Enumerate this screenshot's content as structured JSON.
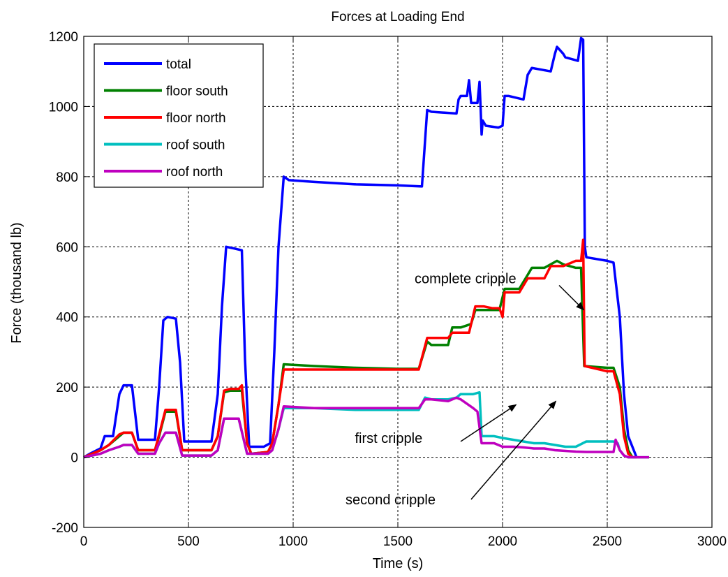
{
  "chart_data": {
    "type": "line",
    "title": "Forces at Loading End",
    "xlabel": "Time (s)",
    "ylabel": "Force (thousand lb)",
    "xlim": [
      0,
      3000
    ],
    "ylim": [
      -200,
      1200
    ],
    "x_ticks": [
      0,
      500,
      1000,
      1500,
      2000,
      2500,
      3000
    ],
    "y_ticks": [
      -200,
      0,
      200,
      400,
      600,
      800,
      1000,
      1200
    ],
    "grid": true,
    "legend_position": "top-left",
    "series": [
      {
        "name": "total",
        "color": "#0000ff",
        "points": [
          [
            0,
            0
          ],
          [
            30,
            10
          ],
          [
            80,
            25
          ],
          [
            100,
            60
          ],
          [
            140,
            60
          ],
          [
            170,
            180
          ],
          [
            190,
            205
          ],
          [
            230,
            205
          ],
          [
            260,
            50
          ],
          [
            340,
            50
          ],
          [
            360,
            200
          ],
          [
            380,
            390
          ],
          [
            400,
            400
          ],
          [
            440,
            395
          ],
          [
            460,
            270
          ],
          [
            480,
            45
          ],
          [
            570,
            45
          ],
          [
            610,
            45
          ],
          [
            640,
            180
          ],
          [
            660,
            430
          ],
          [
            680,
            600
          ],
          [
            720,
            595
          ],
          [
            755,
            590
          ],
          [
            770,
            280
          ],
          [
            790,
            30
          ],
          [
            860,
            30
          ],
          [
            890,
            40
          ],
          [
            910,
            300
          ],
          [
            930,
            600
          ],
          [
            955,
            800
          ],
          [
            980,
            790
          ],
          [
            1100,
            785
          ],
          [
            1300,
            778
          ],
          [
            1500,
            775
          ],
          [
            1615,
            772
          ],
          [
            1640,
            990
          ],
          [
            1660,
            985
          ],
          [
            1780,
            980
          ],
          [
            1790,
            1020
          ],
          [
            1800,
            1030
          ],
          [
            1830,
            1030
          ],
          [
            1840,
            1075
          ],
          [
            1850,
            1010
          ],
          [
            1880,
            1010
          ],
          [
            1890,
            1070
          ],
          [
            1895,
            1000
          ],
          [
            1900,
            920
          ],
          [
            1905,
            960
          ],
          [
            1920,
            945
          ],
          [
            1980,
            940
          ],
          [
            2000,
            945
          ],
          [
            2010,
            1030
          ],
          [
            2030,
            1030
          ],
          [
            2100,
            1020
          ],
          [
            2120,
            1090
          ],
          [
            2140,
            1110
          ],
          [
            2230,
            1100
          ],
          [
            2250,
            1150
          ],
          [
            2260,
            1170
          ],
          [
            2290,
            1150
          ],
          [
            2300,
            1140
          ],
          [
            2360,
            1130
          ],
          [
            2375,
            1195
          ],
          [
            2385,
            1190
          ],
          [
            2393,
            600
          ],
          [
            2400,
            570
          ],
          [
            2500,
            560
          ],
          [
            2530,
            555
          ],
          [
            2560,
            400
          ],
          [
            2580,
            180
          ],
          [
            2600,
            60
          ],
          [
            2620,
            30
          ],
          [
            2640,
            0
          ]
        ]
      },
      {
        "name": "floor south",
        "color": "#008000",
        "points": [
          [
            0,
            0
          ],
          [
            80,
            20
          ],
          [
            120,
            35
          ],
          [
            170,
            60
          ],
          [
            190,
            70
          ],
          [
            230,
            70
          ],
          [
            260,
            20
          ],
          [
            340,
            20
          ],
          [
            360,
            60
          ],
          [
            390,
            130
          ],
          [
            440,
            130
          ],
          [
            470,
            20
          ],
          [
            570,
            20
          ],
          [
            610,
            20
          ],
          [
            640,
            60
          ],
          [
            670,
            185
          ],
          [
            700,
            190
          ],
          [
            755,
            190
          ],
          [
            780,
            40
          ],
          [
            800,
            10
          ],
          [
            880,
            15
          ],
          [
            900,
            40
          ],
          [
            930,
            150
          ],
          [
            955,
            265
          ],
          [
            1100,
            260
          ],
          [
            1300,
            255
          ],
          [
            1500,
            252
          ],
          [
            1600,
            252
          ],
          [
            1640,
            330
          ],
          [
            1660,
            320
          ],
          [
            1740,
            320
          ],
          [
            1760,
            370
          ],
          [
            1800,
            370
          ],
          [
            1850,
            380
          ],
          [
            1870,
            420
          ],
          [
            1910,
            420
          ],
          [
            1950,
            420
          ],
          [
            1985,
            420
          ],
          [
            2010,
            480
          ],
          [
            2080,
            480
          ],
          [
            2120,
            520
          ],
          [
            2140,
            540
          ],
          [
            2200,
            540
          ],
          [
            2230,
            550
          ],
          [
            2260,
            560
          ],
          [
            2290,
            550
          ],
          [
            2350,
            540
          ],
          [
            2375,
            540
          ],
          [
            2390,
            260
          ],
          [
            2500,
            255
          ],
          [
            2530,
            255
          ],
          [
            2560,
            200
          ],
          [
            2580,
            80
          ],
          [
            2600,
            20
          ],
          [
            2620,
            0
          ],
          [
            2640,
            0
          ]
        ]
      },
      {
        "name": "floor north",
        "color": "#ff0000",
        "points": [
          [
            0,
            0
          ],
          [
            80,
            20
          ],
          [
            120,
            35
          ],
          [
            170,
            65
          ],
          [
            190,
            70
          ],
          [
            230,
            70
          ],
          [
            260,
            20
          ],
          [
            340,
            20
          ],
          [
            360,
            65
          ],
          [
            390,
            135
          ],
          [
            440,
            135
          ],
          [
            470,
            20
          ],
          [
            570,
            20
          ],
          [
            610,
            20
          ],
          [
            640,
            60
          ],
          [
            670,
            190
          ],
          [
            700,
            195
          ],
          [
            740,
            195
          ],
          [
            755,
            205
          ],
          [
            780,
            40
          ],
          [
            800,
            10
          ],
          [
            880,
            15
          ],
          [
            900,
            40
          ],
          [
            930,
            150
          ],
          [
            955,
            250
          ],
          [
            1100,
            250
          ],
          [
            1300,
            250
          ],
          [
            1500,
            250
          ],
          [
            1600,
            250
          ],
          [
            1640,
            340
          ],
          [
            1660,
            340
          ],
          [
            1740,
            340
          ],
          [
            1760,
            355
          ],
          [
            1800,
            355
          ],
          [
            1820,
            355
          ],
          [
            1840,
            355
          ],
          [
            1870,
            430
          ],
          [
            1910,
            430
          ],
          [
            1950,
            425
          ],
          [
            1985,
            425
          ],
          [
            2000,
            400
          ],
          [
            2010,
            470
          ],
          [
            2080,
            470
          ],
          [
            2120,
            510
          ],
          [
            2140,
            510
          ],
          [
            2200,
            510
          ],
          [
            2230,
            545
          ],
          [
            2260,
            545
          ],
          [
            2290,
            545
          ],
          [
            2350,
            560
          ],
          [
            2375,
            560
          ],
          [
            2385,
            620
          ],
          [
            2392,
            260
          ],
          [
            2500,
            245
          ],
          [
            2530,
            245
          ],
          [
            2560,
            180
          ],
          [
            2580,
            60
          ],
          [
            2600,
            10
          ],
          [
            2620,
            0
          ],
          [
            2640,
            0
          ]
        ]
      },
      {
        "name": "roof south",
        "color": "#00bfbf",
        "points": [
          [
            0,
            0
          ],
          [
            80,
            10
          ],
          [
            120,
            20
          ],
          [
            170,
            30
          ],
          [
            190,
            35
          ],
          [
            230,
            35
          ],
          [
            260,
            10
          ],
          [
            340,
            10
          ],
          [
            360,
            40
          ],
          [
            390,
            70
          ],
          [
            440,
            70
          ],
          [
            470,
            5
          ],
          [
            570,
            5
          ],
          [
            610,
            5
          ],
          [
            640,
            20
          ],
          [
            670,
            110
          ],
          [
            700,
            110
          ],
          [
            740,
            110
          ],
          [
            760,
            60
          ],
          [
            780,
            10
          ],
          [
            880,
            10
          ],
          [
            900,
            20
          ],
          [
            930,
            80
          ],
          [
            955,
            140
          ],
          [
            1100,
            140
          ],
          [
            1300,
            135
          ],
          [
            1500,
            135
          ],
          [
            1600,
            135
          ],
          [
            1630,
            170
          ],
          [
            1660,
            165
          ],
          [
            1740,
            165
          ],
          [
            1780,
            170
          ],
          [
            1800,
            180
          ],
          [
            1860,
            180
          ],
          [
            1890,
            185
          ],
          [
            1900,
            60
          ],
          [
            1960,
            60
          ],
          [
            2000,
            55
          ],
          [
            2050,
            50
          ],
          [
            2100,
            45
          ],
          [
            2150,
            40
          ],
          [
            2200,
            40
          ],
          [
            2250,
            35
          ],
          [
            2300,
            30
          ],
          [
            2350,
            30
          ],
          [
            2400,
            45
          ],
          [
            2450,
            45
          ],
          [
            2500,
            45
          ],
          [
            2530,
            45
          ],
          [
            2550,
            40
          ],
          [
            2560,
            20
          ],
          [
            2580,
            5
          ],
          [
            2600,
            0
          ],
          [
            2700,
            0
          ]
        ]
      },
      {
        "name": "roof north",
        "color": "#bf00bf",
        "points": [
          [
            0,
            0
          ],
          [
            80,
            10
          ],
          [
            120,
            20
          ],
          [
            170,
            30
          ],
          [
            190,
            35
          ],
          [
            230,
            35
          ],
          [
            260,
            10
          ],
          [
            340,
            10
          ],
          [
            360,
            40
          ],
          [
            390,
            70
          ],
          [
            440,
            70
          ],
          [
            470,
            5
          ],
          [
            570,
            5
          ],
          [
            610,
            5
          ],
          [
            640,
            20
          ],
          [
            670,
            110
          ],
          [
            700,
            110
          ],
          [
            740,
            110
          ],
          [
            760,
            60
          ],
          [
            780,
            10
          ],
          [
            880,
            10
          ],
          [
            900,
            20
          ],
          [
            930,
            80
          ],
          [
            955,
            145
          ],
          [
            1100,
            140
          ],
          [
            1300,
            140
          ],
          [
            1500,
            140
          ],
          [
            1600,
            140
          ],
          [
            1630,
            165
          ],
          [
            1660,
            165
          ],
          [
            1740,
            160
          ],
          [
            1780,
            170
          ],
          [
            1800,
            165
          ],
          [
            1860,
            140
          ],
          [
            1880,
            130
          ],
          [
            1900,
            40
          ],
          [
            1960,
            40
          ],
          [
            2000,
            30
          ],
          [
            2050,
            30
          ],
          [
            2100,
            28
          ],
          [
            2150,
            25
          ],
          [
            2200,
            25
          ],
          [
            2250,
            20
          ],
          [
            2300,
            18
          ],
          [
            2350,
            16
          ],
          [
            2400,
            15
          ],
          [
            2450,
            15
          ],
          [
            2500,
            15
          ],
          [
            2530,
            15
          ],
          [
            2540,
            50
          ],
          [
            2560,
            20
          ],
          [
            2580,
            5
          ],
          [
            2600,
            0
          ],
          [
            2700,
            0
          ]
        ]
      }
    ],
    "annotations": [
      {
        "text": "complete cripple",
        "text_at": [
          1580,
          510
        ],
        "arrow_from": [
          2270,
          490
        ],
        "arrow_to": [
          2388,
          420
        ]
      },
      {
        "text": "first cripple",
        "text_at": [
          1295,
          55
        ],
        "arrow_from": [
          1800,
          45
        ],
        "arrow_to": [
          2065,
          150
        ]
      },
      {
        "text": "second cripple",
        "text_at": [
          1250,
          -120
        ],
        "arrow_from": [
          1850,
          -120
        ],
        "arrow_to": [
          2255,
          160
        ]
      }
    ]
  }
}
